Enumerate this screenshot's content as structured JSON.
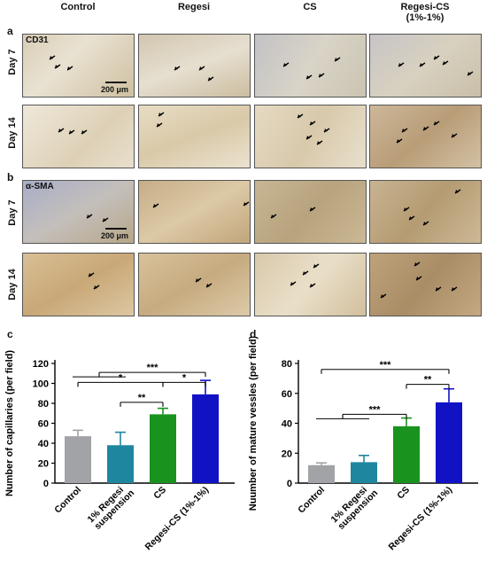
{
  "columns": [
    "Control",
    "Regesi",
    "CS",
    "Regesi-CS\n(1%-1%)"
  ],
  "panel_a": {
    "letter": "a",
    "stain": "CD31",
    "rows": [
      "Day 7",
      "Day 14"
    ],
    "scale": "200 μm"
  },
  "panel_b": {
    "letter": "b",
    "stain": "α-SMA",
    "rows": [
      "Day 7",
      "Day 14"
    ],
    "scale": "200 μm"
  },
  "panel_c_letter": "c",
  "panel_d_letter": "d",
  "colors": {
    "control": "#a2a3a7",
    "regesi": "#1e879f",
    "cs": "#19921e",
    "regesi_cs": "#1212c5"
  },
  "chart_data": [
    {
      "type": "bar",
      "categories": [
        "Control",
        "1% Regesi suspension",
        "CS",
        "Regesi-CS (1%-1%)"
      ],
      "values": [
        47,
        38,
        69,
        89
      ],
      "errors": [
        6,
        13,
        6,
        14
      ],
      "ylabel": "Number of capillaries (per field)",
      "ylim": [
        0,
        120
      ],
      "yticks": [
        0,
        20,
        40,
        60,
        80,
        100,
        120
      ],
      "significance": [
        "*",
        "***",
        "**",
        "*"
      ]
    },
    {
      "type": "bar",
      "categories": [
        "Control",
        "1% Regesi suspension",
        "CS",
        "Regesi-CS (1%-1%)"
      ],
      "values": [
        12,
        14,
        38,
        54
      ],
      "errors": [
        1.5,
        4.5,
        5.5,
        9
      ],
      "ylabel": "Nuumber of mature vessles (per field)",
      "ylim": [
        0,
        80
      ],
      "yticks": [
        0,
        20,
        40,
        60,
        80
      ],
      "significance": [
        "***",
        "***",
        "**"
      ]
    }
  ]
}
